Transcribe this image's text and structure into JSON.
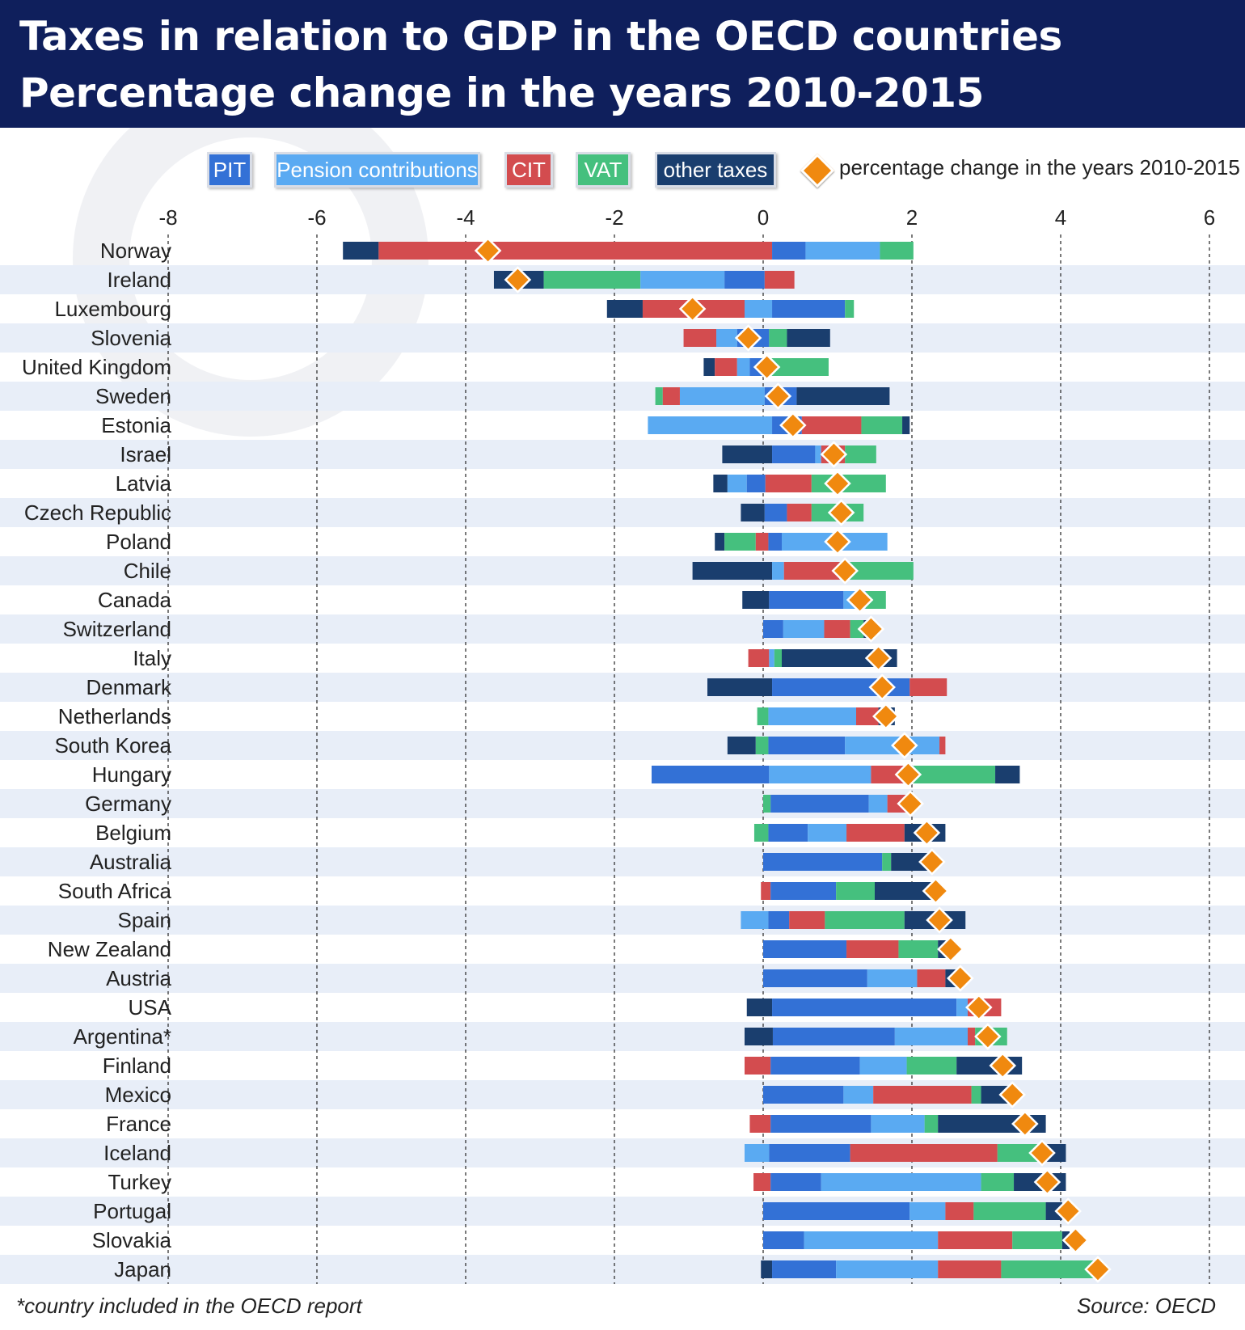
{
  "header": {
    "title": "Taxes in relation to GDP in the OECD countries",
    "subtitle": "Percentage change in the years 2010-2015"
  },
  "colors": {
    "header_bg": "#0f1f5c",
    "PIT": "#3371d6",
    "Pension contributions": "#5aaaf2",
    "CIT": "#d34c4f",
    "VAT": "#45c07e",
    "other taxes": "#1a3e6e",
    "total_marker": "#f0890f",
    "band": "#e8eef8"
  },
  "legend": {
    "items": [
      {
        "key": "PIT",
        "label": "PIT"
      },
      {
        "key": "Pension contributions",
        "label": "Pension contributions"
      },
      {
        "key": "CIT",
        "label": "CIT"
      },
      {
        "key": "VAT",
        "label": "VAT"
      },
      {
        "key": "other taxes",
        "label": "other taxes"
      }
    ],
    "marker_label": "percentage change in the years 2010-2015"
  },
  "footnote": "*country included in the OECD report",
  "source": "Source: OECD",
  "chart_data": {
    "type": "bar",
    "orientation": "horizontal",
    "stacked": true,
    "title": "Taxes in relation to GDP in the OECD countries",
    "subtitle": "Percentage change in the years 2010-2015",
    "xlim": [
      -8,
      6
    ],
    "xticks": [
      -8,
      -6,
      -4,
      -2,
      0,
      2,
      4,
      6
    ],
    "grid": "vertical dashed",
    "legend_position": "top",
    "rows": [
      {
        "country": "Norway",
        "total": -3.7,
        "segments": [
          [
            "other taxes",
            -5.65,
            -5.17
          ],
          [
            "CIT",
            -5.17,
            0.12
          ],
          [
            "PIT",
            0.12,
            0.57
          ],
          [
            "Pension contributions",
            0.57,
            1.57
          ],
          [
            "VAT",
            1.57,
            2.02
          ]
        ]
      },
      {
        "country": "Ireland",
        "total": -3.3,
        "segments": [
          [
            "other taxes",
            -3.62,
            -2.95
          ],
          [
            "VAT",
            -2.95,
            -1.65
          ],
          [
            "Pension contributions",
            -1.65,
            -0.52
          ],
          [
            "PIT",
            -0.52,
            0.02
          ],
          [
            "CIT",
            0.02,
            0.42
          ]
        ]
      },
      {
        "country": "Luxembourg",
        "total": -0.95,
        "segments": [
          [
            "other taxes",
            -2.1,
            -1.62
          ],
          [
            "CIT",
            -1.62,
            -0.25
          ],
          [
            "Pension contributions",
            -0.25,
            0.12
          ],
          [
            "PIT",
            0.12,
            1.1
          ],
          [
            "VAT",
            1.1,
            1.22
          ]
        ]
      },
      {
        "country": "Slovenia",
        "total": -0.2,
        "segments": [
          [
            "CIT",
            -1.07,
            -0.63
          ],
          [
            "Pension contributions",
            -0.63,
            -0.35
          ],
          [
            "PIT",
            -0.35,
            0.08
          ],
          [
            "VAT",
            0.08,
            0.32
          ],
          [
            "other taxes",
            0.32,
            0.9
          ]
        ]
      },
      {
        "country": "United Kingdom",
        "total": 0.05,
        "segments": [
          [
            "other taxes",
            -0.8,
            -0.65
          ],
          [
            "CIT",
            -0.65,
            -0.35
          ],
          [
            "Pension contributions",
            -0.35,
            -0.18
          ],
          [
            "PIT",
            -0.18,
            0.0
          ],
          [
            "VAT",
            0.0,
            0.88
          ]
        ]
      },
      {
        "country": "Sweden",
        "total": 0.2,
        "segments": [
          [
            "VAT",
            -1.45,
            -1.35
          ],
          [
            "CIT",
            -1.35,
            -1.12
          ],
          [
            "Pension contributions",
            -1.12,
            0.02
          ],
          [
            "PIT",
            0.02,
            0.45
          ],
          [
            "other taxes",
            0.45,
            1.7
          ]
        ]
      },
      {
        "country": "Estonia",
        "total": 0.4,
        "segments": [
          [
            "Pension contributions",
            -1.55,
            0.12
          ],
          [
            "PIT",
            0.12,
            0.52
          ],
          [
            "CIT",
            0.52,
            1.32
          ],
          [
            "VAT",
            1.32,
            1.87
          ],
          [
            "other taxes",
            1.87,
            1.97
          ]
        ]
      },
      {
        "country": "Israel",
        "total": 0.95,
        "segments": [
          [
            "other taxes",
            -0.55,
            0.12
          ],
          [
            "PIT",
            0.12,
            0.7
          ],
          [
            "Pension contributions",
            0.7,
            0.78
          ],
          [
            "CIT",
            0.78,
            1.1
          ],
          [
            "VAT",
            1.1,
            1.52
          ]
        ]
      },
      {
        "country": "Latvia",
        "total": 1.0,
        "segments": [
          [
            "other taxes",
            -0.67,
            -0.48
          ],
          [
            "Pension contributions",
            -0.48,
            -0.22
          ],
          [
            "PIT",
            -0.22,
            0.03
          ],
          [
            "CIT",
            0.03,
            0.65
          ],
          [
            "VAT",
            0.65,
            1.65
          ]
        ]
      },
      {
        "country": "Czech Republic",
        "total": 1.05,
        "segments": [
          [
            "other taxes",
            -0.3,
            0.02
          ],
          [
            "PIT",
            0.02,
            0.32
          ],
          [
            "CIT",
            0.32,
            0.65
          ],
          [
            "VAT",
            0.65,
            1.35
          ]
        ]
      },
      {
        "country": "Poland",
        "total": 1.0,
        "segments": [
          [
            "other taxes",
            -0.65,
            -0.52
          ],
          [
            "VAT",
            -0.52,
            -0.1
          ],
          [
            "CIT",
            -0.1,
            0.07
          ],
          [
            "PIT",
            0.07,
            0.25
          ],
          [
            "Pension contributions",
            0.25,
            1.67
          ]
        ]
      },
      {
        "country": "Chile",
        "total": 1.1,
        "segments": [
          [
            "other taxes",
            -0.95,
            0.12
          ],
          [
            "Pension contributions",
            0.12,
            0.28
          ],
          [
            "CIT",
            0.28,
            1.03
          ],
          [
            "VAT",
            1.03,
            2.02
          ]
        ]
      },
      {
        "country": "Canada",
        "total": 1.3,
        "segments": [
          [
            "other taxes",
            -0.28,
            0.08
          ],
          [
            "PIT",
            0.08,
            1.08
          ],
          [
            "Pension contributions",
            1.08,
            1.38
          ],
          [
            "VAT",
            1.38,
            1.65
          ]
        ]
      },
      {
        "country": "Switzerland",
        "total": 1.45,
        "segments": [
          [
            "PIT",
            0.0,
            0.27
          ],
          [
            "Pension contributions",
            0.27,
            0.82
          ],
          [
            "CIT",
            0.82,
            1.17
          ],
          [
            "VAT",
            1.17,
            1.35
          ],
          [
            "other taxes",
            1.35,
            1.5
          ]
        ]
      },
      {
        "country": "Italy",
        "total": 1.55,
        "segments": [
          [
            "CIT",
            -0.2,
            0.08
          ],
          [
            "Pension contributions",
            0.08,
            0.15
          ],
          [
            "VAT",
            0.15,
            0.25
          ],
          [
            "other taxes",
            0.25,
            1.8
          ]
        ]
      },
      {
        "country": "Denmark",
        "total": 1.6,
        "segments": [
          [
            "other taxes",
            -0.75,
            0.12
          ],
          [
            "PIT",
            0.12,
            1.97
          ],
          [
            "CIT",
            1.97,
            2.47
          ]
        ]
      },
      {
        "country": "Netherlands",
        "total": 1.65,
        "segments": [
          [
            "VAT",
            -0.08,
            0.07
          ],
          [
            "Pension contributions",
            0.07,
            1.25
          ],
          [
            "CIT",
            1.25,
            1.55
          ],
          [
            "other taxes",
            1.55,
            1.77
          ]
        ]
      },
      {
        "country": "South Korea",
        "total": 1.9,
        "segments": [
          [
            "other taxes",
            -0.48,
            -0.1
          ],
          [
            "VAT",
            -0.1,
            0.07
          ],
          [
            "PIT",
            0.07,
            1.1
          ],
          [
            "Pension contributions",
            1.1,
            2.37
          ],
          [
            "CIT",
            2.37,
            2.45
          ]
        ]
      },
      {
        "country": "Hungary",
        "total": 1.95,
        "segments": [
          [
            "PIT",
            -1.5,
            0.08
          ],
          [
            "Pension contributions",
            0.08,
            1.45
          ],
          [
            "CIT",
            1.45,
            1.95
          ],
          [
            "VAT",
            1.95,
            3.12
          ],
          [
            "other taxes",
            3.12,
            3.45
          ]
        ]
      },
      {
        "country": "Germany",
        "total": 1.98,
        "segments": [
          [
            "VAT",
            0.0,
            0.1
          ],
          [
            "PIT",
            0.1,
            1.42
          ],
          [
            "Pension contributions",
            1.42,
            1.67
          ],
          [
            "CIT",
            1.67,
            1.95
          ]
        ]
      },
      {
        "country": "Belgium",
        "total": 2.2,
        "segments": [
          [
            "VAT",
            -0.12,
            0.07
          ],
          [
            "PIT",
            0.07,
            0.6
          ],
          [
            "Pension contributions",
            0.6,
            1.12
          ],
          [
            "CIT",
            1.12,
            1.9
          ],
          [
            "other taxes",
            1.9,
            2.45
          ]
        ]
      },
      {
        "country": "Australia",
        "total": 2.27,
        "segments": [
          [
            "PIT",
            0.0,
            1.6
          ],
          [
            "VAT",
            1.6,
            1.72
          ],
          [
            "other taxes",
            1.72,
            2.3
          ]
        ]
      },
      {
        "country": "South Africa",
        "total": 2.32,
        "segments": [
          [
            "CIT",
            -0.03,
            0.1
          ],
          [
            "PIT",
            0.1,
            0.98
          ],
          [
            "VAT",
            0.98,
            1.5
          ],
          [
            "other taxes",
            1.5,
            2.32
          ]
        ]
      },
      {
        "country": "Spain",
        "total": 2.37,
        "segments": [
          [
            "Pension contributions",
            -0.3,
            0.07
          ],
          [
            "PIT",
            0.07,
            0.35
          ],
          [
            "CIT",
            0.35,
            0.83
          ],
          [
            "VAT",
            0.83,
            1.9
          ],
          [
            "other taxes",
            1.9,
            2.72
          ]
        ]
      },
      {
        "country": "New Zealand",
        "total": 2.52,
        "segments": [
          [
            "PIT",
            0.0,
            1.12
          ],
          [
            "CIT",
            1.12,
            1.82
          ],
          [
            "VAT",
            1.82,
            2.35
          ],
          [
            "other taxes",
            2.35,
            2.57
          ]
        ]
      },
      {
        "country": "Austria",
        "total": 2.65,
        "segments": [
          [
            "PIT",
            0.0,
            1.4
          ],
          [
            "Pension contributions",
            1.4,
            2.07
          ],
          [
            "CIT",
            2.07,
            2.45
          ],
          [
            "other taxes",
            2.45,
            2.67
          ]
        ]
      },
      {
        "country": "USA",
        "total": 2.9,
        "segments": [
          [
            "other taxes",
            -0.22,
            0.12
          ],
          [
            "PIT",
            0.12,
            2.6
          ],
          [
            "Pension contributions",
            2.6,
            2.75
          ],
          [
            "CIT",
            2.75,
            3.2
          ]
        ]
      },
      {
        "country": "Argentina*",
        "total": 3.02,
        "segments": [
          [
            "other taxes",
            -0.25,
            0.13
          ],
          [
            "PIT",
            0.13,
            1.77
          ],
          [
            "Pension contributions",
            1.77,
            2.75
          ],
          [
            "CIT",
            2.75,
            2.85
          ],
          [
            "VAT",
            2.85,
            3.28
          ]
        ]
      },
      {
        "country": "Finland",
        "total": 3.22,
        "segments": [
          [
            "CIT",
            -0.25,
            0.1
          ],
          [
            "PIT",
            0.1,
            1.3
          ],
          [
            "Pension contributions",
            1.3,
            1.93
          ],
          [
            "VAT",
            1.93,
            2.6
          ],
          [
            "other taxes",
            2.6,
            3.48
          ]
        ]
      },
      {
        "country": "Mexico",
        "total": 3.35,
        "segments": [
          [
            "PIT",
            0.0,
            1.08
          ],
          [
            "Pension contributions",
            1.08,
            1.48
          ],
          [
            "CIT",
            1.48,
            2.8
          ],
          [
            "VAT",
            2.8,
            2.93
          ],
          [
            "other taxes",
            2.93,
            3.3
          ]
        ]
      },
      {
        "country": "France",
        "total": 3.52,
        "segments": [
          [
            "CIT",
            -0.18,
            0.1
          ],
          [
            "PIT",
            0.1,
            1.45
          ],
          [
            "Pension contributions",
            1.45,
            2.17
          ],
          [
            "VAT",
            2.17,
            2.35
          ],
          [
            "other taxes",
            2.35,
            3.8
          ]
        ]
      },
      {
        "country": "Iceland",
        "total": 3.75,
        "segments": [
          [
            "Pension contributions",
            -0.25,
            0.08
          ],
          [
            "PIT",
            0.08,
            1.17
          ],
          [
            "CIT",
            1.17,
            3.15
          ],
          [
            "VAT",
            3.15,
            3.8
          ],
          [
            "other taxes",
            3.8,
            4.07
          ]
        ]
      },
      {
        "country": "Turkey",
        "total": 3.82,
        "segments": [
          [
            "CIT",
            -0.13,
            0.1
          ],
          [
            "PIT",
            0.1,
            0.78
          ],
          [
            "Pension contributions",
            0.78,
            2.93
          ],
          [
            "VAT",
            2.93,
            3.37
          ],
          [
            "other taxes",
            3.37,
            4.07
          ]
        ]
      },
      {
        "country": "Portugal",
        "total": 4.1,
        "segments": [
          [
            "PIT",
            0.0,
            1.97
          ],
          [
            "Pension contributions",
            1.97,
            2.45
          ],
          [
            "CIT",
            2.45,
            2.83
          ],
          [
            "VAT",
            2.83,
            3.8
          ],
          [
            "other taxes",
            3.8,
            4.02
          ]
        ]
      },
      {
        "country": "Slovakia",
        "total": 4.2,
        "segments": [
          [
            "PIT",
            0.0,
            0.55
          ],
          [
            "Pension contributions",
            0.55,
            2.35
          ],
          [
            "CIT",
            2.35,
            3.35
          ],
          [
            "VAT",
            3.35,
            4.02
          ],
          [
            "other taxes",
            4.02,
            4.12
          ]
        ]
      },
      {
        "country": "Japan",
        "total": 4.5,
        "segments": [
          [
            "other taxes",
            -0.03,
            0.12
          ],
          [
            "PIT",
            0.12,
            0.98
          ],
          [
            "Pension contributions",
            0.98,
            2.35
          ],
          [
            "CIT",
            2.35,
            3.2
          ],
          [
            "VAT",
            3.2,
            4.45
          ]
        ]
      }
    ]
  }
}
